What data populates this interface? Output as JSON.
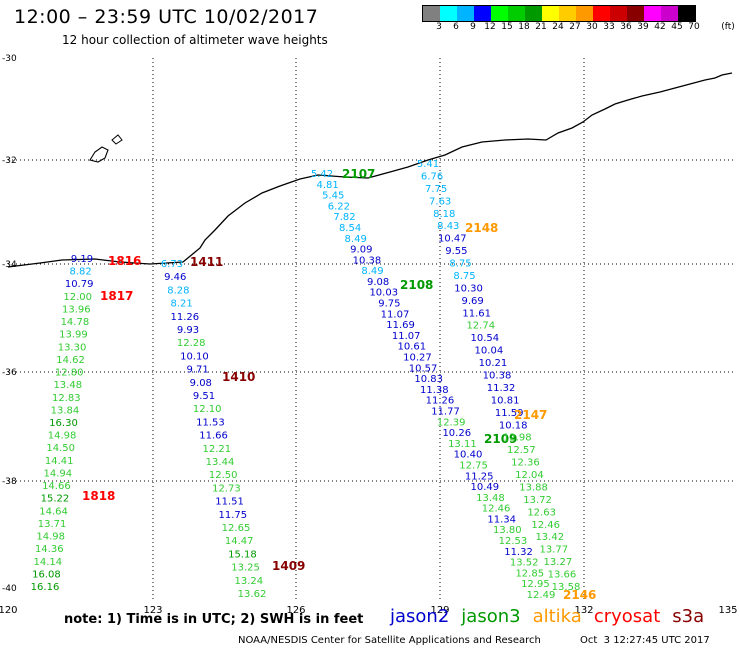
{
  "header": {
    "title": "12:00 – 23:59 UTC 10/02/2017",
    "subtitle": "12 hour collection of altimeter wave heights"
  },
  "legend": {
    "colors": [
      "#808080",
      "#00ffff",
      "#00b4ff",
      "#0000ff",
      "#00ff00",
      "#00cc00",
      "#009900",
      "#ffff00",
      "#ffcc00",
      "#ff9900",
      "#ff0000",
      "#cc0000",
      "#880000",
      "#ff00ff",
      "#cc00cc",
      "#000000"
    ],
    "labels": [
      "3",
      "6",
      "9",
      "12",
      "15",
      "18",
      "21",
      "24",
      "27",
      "30",
      "33",
      "36",
      "39",
      "42",
      "45",
      "70",
      "(ft)"
    ]
  },
  "axes": {
    "lon_labels": [
      "120",
      "123",
      "126",
      "129",
      "132",
      "135"
    ],
    "lat_labels": [
      "-30",
      "-32",
      "-34",
      "-36",
      "-38",
      "-40"
    ]
  },
  "tracks": [
    {
      "time": "1816",
      "color": "#ff0000",
      "values": [
        "9.19",
        "8.82",
        "10.79",
        "12.00",
        "13.96",
        "14.78",
        "13.99",
        "13.30",
        "14.62",
        "12.80",
        "13.48",
        "12.83",
        "13.84",
        "16.30",
        "14.98",
        "14.50",
        "14.41",
        "14.94",
        "14.66",
        "15.22",
        "14.64",
        "13.71",
        "14.98",
        "14.36",
        "14.14",
        "16.08",
        "16.16"
      ]
    },
    {
      "time": "1817",
      "color": "#ff0000",
      "values": []
    },
    {
      "time": "1818",
      "color": "#ff0000",
      "values": []
    },
    {
      "time": "1411",
      "color": "#880000",
      "values": [
        "6.73",
        "9.46",
        "8.28",
        "8.21",
        "11.26",
        "9.93",
        "12.28",
        "10.10",
        "9.71",
        "9.08",
        "9.51",
        "12.10",
        "11.53",
        "11.66",
        "12.21",
        "13.44",
        "12.50",
        "12.73",
        "11.51",
        "11.75",
        "12.65",
        "14.47",
        "15.18",
        "13.25",
        "13.24",
        "13.62"
      ]
    },
    {
      "time": "1410",
      "color": "#880000",
      "values": []
    },
    {
      "time": "1409",
      "color": "#880000",
      "values": []
    },
    {
      "time": "2107",
      "color": "#009900",
      "values": [
        "5.42",
        "4.81",
        "5.45",
        "6.22",
        "7.82",
        "8.54",
        "8.49",
        "9.09",
        "10.38",
        "8.49",
        "9.08",
        "10.03",
        "9.75",
        "11.07",
        "11.69",
        "11.07",
        "10.61",
        "10.27",
        "10.57",
        "10.83",
        "11.38",
        "11.26",
        "11.77",
        "12.39",
        "10.26",
        "13.11",
        "10.40",
        "12.75",
        "11.25",
        "10.49",
        "13.48",
        "12.46",
        "11.34",
        "13.80",
        "12.53",
        "11.32",
        "13.52",
        "12.85",
        "12.95",
        "12.49"
      ]
    },
    {
      "time": "2108",
      "color": "#009900",
      "values": []
    },
    {
      "time": "2109",
      "color": "#009900",
      "values": []
    },
    {
      "time": "2148",
      "color": "#ff9900",
      "values": [
        "5.41",
        "6.76",
        "7.75",
        "7.63",
        "8.18",
        "8.43",
        "10.47",
        "9.55",
        "8.75",
        "8.75",
        "10.30",
        "9.69",
        "11.61",
        "12.74",
        "10.54",
        "10.04",
        "10.21",
        "10.38",
        "11.32",
        "10.81",
        "11.59",
        "10.18",
        "12.98",
        "12.57",
        "12.36",
        "12.04",
        "13.88",
        "13.72",
        "12.63",
        "12.46",
        "13.42",
        "13.77",
        "13.27",
        "13.66",
        "13.58"
      ]
    },
    {
      "time": "2147",
      "color": "#ff9900",
      "values": []
    },
    {
      "time": "2146",
      "color": "#ff9900",
      "values": []
    }
  ],
  "footer": {
    "note": "note:  1) Time is in UTC;  2) SWH is in feet",
    "satellites": [
      {
        "name": "jason2",
        "color": "#0000cc"
      },
      {
        "name": "jason3",
        "color": "#009900"
      },
      {
        "name": "altika",
        "color": "#ff9900"
      },
      {
        "name": "cryosat",
        "color": "#ff0000"
      },
      {
        "name": "s3a",
        "color": "#880000"
      }
    ],
    "credit": "NOAA/NESDIS Center for Satellite Applications and Research",
    "timestamp": "Oct  3 12:27:45 UTC 2017"
  }
}
